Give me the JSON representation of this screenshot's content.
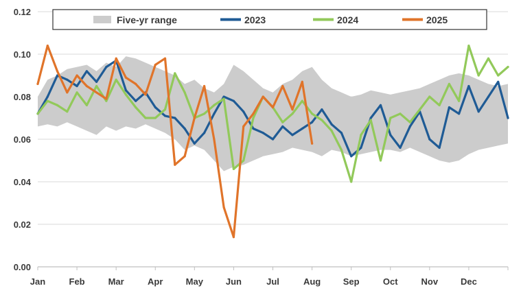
{
  "chart_data": {
    "type": "line",
    "title": "",
    "xlabel": "",
    "ylabel": "",
    "ylim": [
      0,
      0.12
    ],
    "y_ticks": [
      "0.00",
      "0.02",
      "0.04",
      "0.06",
      "0.08",
      "0.10",
      "0.12"
    ],
    "y_tick_values": [
      0,
      0.02,
      0.04,
      0.06,
      0.08,
      0.1,
      0.12
    ],
    "x_unit": "month index (Jan = 0, year end = 12)",
    "xlim": [
      0,
      12
    ],
    "months": [
      "Jan",
      "Feb",
      "Mar",
      "Apr",
      "May",
      "Jun",
      "Jul",
      "Aug",
      "Sep",
      "Oct",
      "Nov",
      "Dec"
    ],
    "grid": "horizontal",
    "legend_position": "top",
    "range_band": {
      "name": "Five-yr range",
      "color": "#cccccc",
      "x": [
        0,
        0.25,
        0.5,
        0.75,
        1,
        1.25,
        1.5,
        1.75,
        2,
        2.25,
        2.5,
        2.75,
        3,
        3.25,
        3.5,
        3.75,
        4,
        4.25,
        4.5,
        4.75,
        5,
        5.25,
        5.5,
        5.75,
        6,
        6.25,
        6.5,
        6.75,
        7,
        7.25,
        7.5,
        7.75,
        8,
        8.25,
        8.5,
        8.75,
        9,
        9.25,
        9.5,
        9.75,
        10,
        10.25,
        10.5,
        10.75,
        11,
        11.25,
        11.5,
        11.75,
        12
      ],
      "low": [
        0.066,
        0.067,
        0.066,
        0.068,
        0.066,
        0.064,
        0.062,
        0.066,
        0.064,
        0.066,
        0.065,
        0.067,
        0.065,
        0.063,
        0.06,
        0.055,
        0.057,
        0.055,
        0.05,
        0.045,
        0.047,
        0.048,
        0.05,
        0.052,
        0.053,
        0.054,
        0.056,
        0.055,
        0.054,
        0.052,
        0.055,
        0.054,
        0.052,
        0.053,
        0.054,
        0.055,
        0.055,
        0.054,
        0.056,
        0.054,
        0.052,
        0.05,
        0.049,
        0.05,
        0.053,
        0.055,
        0.056,
        0.057,
        0.058
      ],
      "high": [
        0.08,
        0.088,
        0.09,
        0.093,
        0.094,
        0.095,
        0.092,
        0.096,
        0.094,
        0.099,
        0.098,
        0.096,
        0.094,
        0.092,
        0.09,
        0.086,
        0.088,
        0.084,
        0.082,
        0.086,
        0.095,
        0.092,
        0.088,
        0.084,
        0.082,
        0.086,
        0.088,
        0.092,
        0.094,
        0.088,
        0.084,
        0.082,
        0.08,
        0.081,
        0.083,
        0.082,
        0.081,
        0.082,
        0.083,
        0.084,
        0.086,
        0.088,
        0.09,
        0.091,
        0.09,
        0.088,
        0.086,
        0.085,
        0.086
      ]
    },
    "series": [
      {
        "name": "2023",
        "color": "#1f5b95",
        "x": [
          0,
          0.25,
          0.5,
          0.75,
          1,
          1.25,
          1.5,
          1.75,
          2,
          2.25,
          2.5,
          2.75,
          3,
          3.25,
          3.5,
          3.75,
          4,
          4.25,
          4.5,
          4.75,
          5,
          5.25,
          5.5,
          5.75,
          6,
          6.25,
          6.5,
          6.75,
          7,
          7.25,
          7.5,
          7.75,
          8,
          8.25,
          8.5,
          8.75,
          9,
          9.25,
          9.5,
          9.75,
          10,
          10.25,
          10.5,
          10.75,
          11,
          11.25,
          11.5,
          11.75,
          12
        ],
        "y": [
          0.072,
          0.08,
          0.09,
          0.088,
          0.085,
          0.092,
          0.087,
          0.094,
          0.097,
          0.083,
          0.078,
          0.082,
          0.075,
          0.071,
          0.07,
          0.065,
          0.058,
          0.063,
          0.072,
          0.08,
          0.078,
          0.073,
          0.065,
          0.063,
          0.06,
          0.066,
          0.062,
          0.065,
          0.068,
          0.074,
          0.067,
          0.063,
          0.052,
          0.056,
          0.07,
          0.076,
          0.062,
          0.056,
          0.066,
          0.073,
          0.06,
          0.056,
          0.075,
          0.072,
          0.085,
          0.073,
          0.08,
          0.087,
          0.07
        ]
      },
      {
        "name": "2024",
        "color": "#92c95a",
        "x": [
          0,
          0.25,
          0.5,
          0.75,
          1,
          1.25,
          1.5,
          1.75,
          2,
          2.25,
          2.5,
          2.75,
          3,
          3.25,
          3.5,
          3.75,
          4,
          4.25,
          4.5,
          4.75,
          5,
          5.25,
          5.5,
          5.75,
          6,
          6.25,
          6.5,
          6.75,
          7,
          7.25,
          7.5,
          7.75,
          8,
          8.25,
          8.5,
          8.75,
          9,
          9.25,
          9.5,
          9.75,
          10,
          10.25,
          10.5,
          10.75,
          11,
          11.25,
          11.5,
          11.75,
          12
        ],
        "y": [
          0.072,
          0.078,
          0.076,
          0.073,
          0.082,
          0.076,
          0.085,
          0.078,
          0.088,
          0.081,
          0.075,
          0.07,
          0.07,
          0.074,
          0.091,
          0.082,
          0.07,
          0.072,
          0.076,
          0.079,
          0.046,
          0.05,
          0.07,
          0.08,
          0.075,
          0.068,
          0.072,
          0.078,
          0.072,
          0.069,
          0.064,
          0.055,
          0.04,
          0.062,
          0.069,
          0.05,
          0.07,
          0.072,
          0.068,
          0.074,
          0.08,
          0.076,
          0.086,
          0.078,
          0.104,
          0.09,
          0.098,
          0.09,
          0.094
        ]
      },
      {
        "name": "2025",
        "color": "#e0742a",
        "x": [
          0,
          0.25,
          0.5,
          0.75,
          1,
          1.25,
          1.5,
          1.75,
          2,
          2.25,
          2.5,
          2.75,
          3,
          3.25,
          3.5,
          3.75,
          4,
          4.25,
          4.5,
          4.75,
          5,
          5.25,
          5.5,
          5.75,
          6,
          6.25,
          6.5,
          6.75,
          7
        ],
        "y": [
          0.086,
          0.104,
          0.092,
          0.082,
          0.09,
          0.085,
          0.082,
          0.079,
          0.098,
          0.089,
          0.086,
          0.081,
          0.095,
          0.098,
          0.048,
          0.052,
          0.07,
          0.085,
          0.06,
          0.028,
          0.014,
          0.066,
          0.072,
          0.08,
          0.075,
          0.085,
          0.074,
          0.087,
          0.058
        ]
      }
    ]
  }
}
